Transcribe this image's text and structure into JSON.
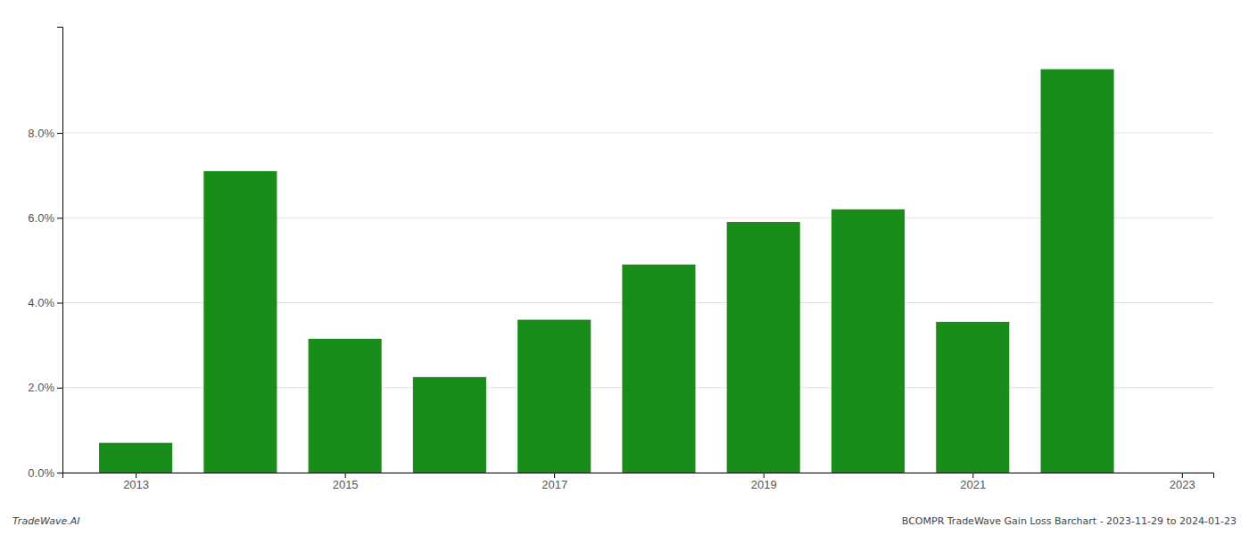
{
  "chart_data": {
    "type": "bar",
    "x": [
      2013,
      2014,
      2015,
      2016,
      2017,
      2018,
      2019,
      2020,
      2021,
      2022
    ],
    "values": [
      0.007,
      0.071,
      0.0315,
      0.0225,
      0.036,
      0.049,
      0.059,
      0.062,
      0.0355,
      0.095
    ],
    "color": "#1a8c1a",
    "xlim": [
      2012.3,
      2023.3
    ],
    "xticks": [
      2013,
      2015,
      2017,
      2019,
      2021,
      2023
    ],
    "ylim": [
      0,
      0.105
    ],
    "yticks": [
      {
        "value": 0.0,
        "label": "0.0%"
      },
      {
        "value": 0.02,
        "label": "2.0%"
      },
      {
        "value": 0.04,
        "label": "4.0%"
      },
      {
        "value": 0.06,
        "label": "6.0%"
      },
      {
        "value": 0.08,
        "label": "8.0%"
      }
    ],
    "grid": true,
    "annotations": [
      "TradeWave.AI",
      "BCOMPR TradeWave Gain Loss Barchart - 2023-11-29 to 2024-01-23"
    ]
  }
}
